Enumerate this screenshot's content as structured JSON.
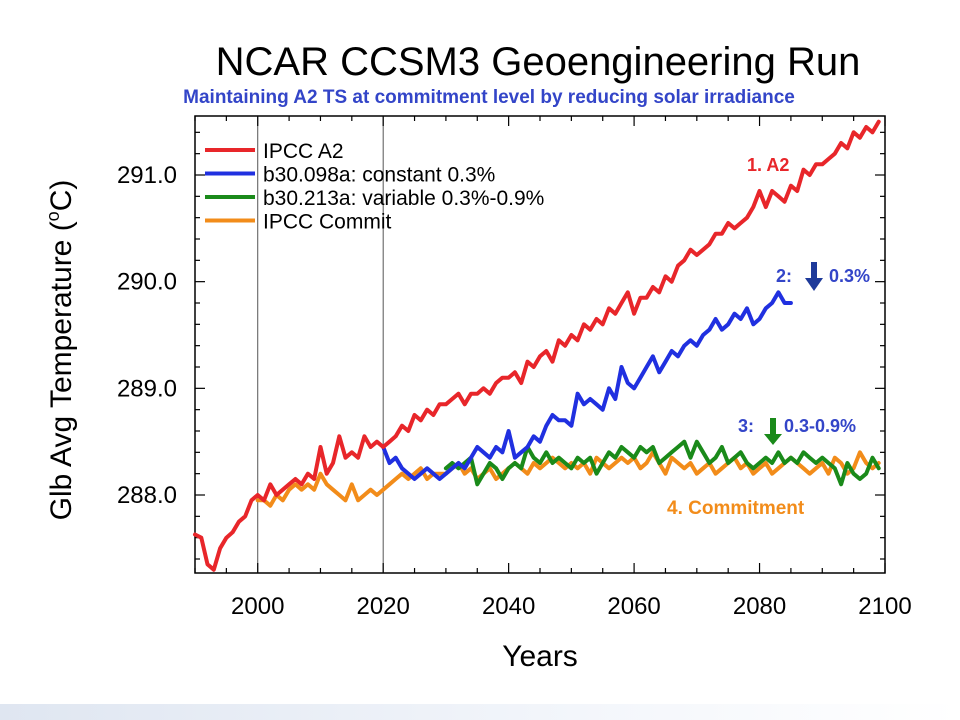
{
  "chart_data": {
    "type": "line",
    "title": "NCAR CCSM3 Geoengineering Run",
    "subtitle": "Maintaining A2 TS at commitment level by reducing solar irradiance",
    "xlabel": "Years",
    "ylabel": "Glb Avg Temperature (°C)",
    "ylabel_main": "Glb Avg Temperature (",
    "ylabel_unit_super": "o",
    "ylabel_unit": "C)",
    "xlim": [
      1990,
      2100
    ],
    "ylim": [
      287.3,
      291.5
    ],
    "x_ticks": [
      2000,
      2020,
      2040,
      2060,
      2080,
      2100
    ],
    "x_tick_labels": [
      "2000",
      "2020",
      "2040",
      "2060",
      "2080",
      "2100"
    ],
    "y_ticks": [
      288.0,
      289.0,
      290.0,
      291.0
    ],
    "y_tick_labels": [
      "288.0",
      "289.0",
      "290.0",
      "291.0"
    ],
    "vertical_lines": [
      2000,
      2020
    ],
    "grid": false,
    "legend_position": "top-left",
    "legend": [
      {
        "label": "IPCC A2",
        "color": "#e8262a"
      },
      {
        "label": "b30.098a: constant 0.3%",
        "color": "#2030e0"
      },
      {
        "label": "b30.213a: variable 0.3%-0.9%",
        "color": "#1a8a1a"
      },
      {
        "label": "IPCC Commit",
        "color": "#f28c1a"
      }
    ],
    "series": [
      {
        "name": "IPCC A2",
        "color": "#e8262a",
        "x": [
          1990,
          1991,
          1992,
          1993,
          1994,
          1995,
          1996,
          1997,
          1998,
          1999,
          2000,
          2001,
          2002,
          2003,
          2004,
          2005,
          2006,
          2007,
          2008,
          2009,
          2010,
          2011,
          2012,
          2013,
          2014,
          2015,
          2016,
          2017,
          2018,
          2019,
          2020,
          2021,
          2022,
          2023,
          2024,
          2025,
          2026,
          2027,
          2028,
          2029,
          2030,
          2031,
          2032,
          2033,
          2034,
          2035,
          2036,
          2037,
          2038,
          2039,
          2040,
          2041,
          2042,
          2043,
          2044,
          2045,
          2046,
          2047,
          2048,
          2049,
          2050,
          2051,
          2052,
          2053,
          2054,
          2055,
          2056,
          2057,
          2058,
          2059,
          2060,
          2061,
          2062,
          2063,
          2064,
          2065,
          2066,
          2067,
          2068,
          2069,
          2070,
          2071,
          2072,
          2073,
          2074,
          2075,
          2076,
          2077,
          2078,
          2079,
          2080,
          2081,
          2082,
          2083,
          2084,
          2085,
          2086,
          2087,
          2088,
          2089,
          2090,
          2091,
          2092,
          2093,
          2094,
          2095,
          2096,
          2097,
          2098,
          2099
        ],
        "y": [
          287.63,
          287.6,
          287.35,
          287.3,
          287.5,
          287.6,
          287.65,
          287.75,
          287.8,
          287.95,
          288.0,
          287.95,
          288.1,
          288.0,
          288.05,
          288.1,
          288.15,
          288.1,
          288.2,
          288.15,
          288.45,
          288.2,
          288.3,
          288.55,
          288.35,
          288.4,
          288.35,
          288.55,
          288.45,
          288.5,
          288.45,
          288.5,
          288.55,
          288.65,
          288.6,
          288.75,
          288.7,
          288.8,
          288.75,
          288.85,
          288.85,
          288.9,
          288.95,
          288.85,
          288.95,
          288.95,
          289.0,
          288.95,
          289.05,
          289.1,
          289.1,
          289.15,
          289.05,
          289.25,
          289.2,
          289.3,
          289.35,
          289.25,
          289.45,
          289.4,
          289.5,
          289.45,
          289.6,
          289.55,
          289.65,
          289.6,
          289.75,
          289.7,
          289.8,
          289.9,
          289.7,
          289.85,
          289.85,
          289.95,
          289.9,
          290.05,
          290.0,
          290.15,
          290.2,
          290.3,
          290.25,
          290.3,
          290.35,
          290.45,
          290.45,
          290.55,
          290.5,
          290.55,
          290.6,
          290.7,
          290.85,
          290.7,
          290.85,
          290.8,
          290.75,
          290.9,
          290.85,
          291.05,
          291.0,
          291.1,
          291.1,
          291.15,
          291.2,
          291.3,
          291.25,
          291.4,
          291.35,
          291.45,
          291.4,
          291.5
        ]
      },
      {
        "name": "b30.098a: constant 0.3%",
        "color": "#2030e0",
        "x": [
          2020,
          2021,
          2022,
          2023,
          2024,
          2025,
          2026,
          2027,
          2028,
          2029,
          2030,
          2031,
          2032,
          2033,
          2034,
          2035,
          2036,
          2037,
          2038,
          2039,
          2040,
          2041,
          2042,
          2043,
          2044,
          2045,
          2046,
          2047,
          2048,
          2049,
          2050,
          2051,
          2052,
          2053,
          2054,
          2055,
          2056,
          2057,
          2058,
          2059,
          2060,
          2061,
          2062,
          2063,
          2064,
          2065,
          2066,
          2067,
          2068,
          2069,
          2070,
          2071,
          2072,
          2073,
          2074,
          2075,
          2076,
          2077,
          2078,
          2079,
          2080,
          2081,
          2082,
          2083,
          2084,
          2085
        ],
        "y": [
          288.45,
          288.3,
          288.35,
          288.25,
          288.2,
          288.15,
          288.2,
          288.25,
          288.2,
          288.15,
          288.2,
          288.25,
          288.3,
          288.25,
          288.35,
          288.45,
          288.4,
          288.35,
          288.45,
          288.4,
          288.6,
          288.35,
          288.4,
          288.45,
          288.55,
          288.5,
          288.65,
          288.75,
          288.7,
          288.7,
          288.65,
          288.95,
          288.85,
          288.9,
          288.85,
          288.8,
          289.0,
          288.9,
          289.2,
          289.05,
          289.0,
          289.1,
          289.2,
          289.3,
          289.15,
          289.25,
          289.35,
          289.3,
          289.4,
          289.45,
          289.4,
          289.5,
          289.55,
          289.65,
          289.55,
          289.6,
          289.7,
          289.65,
          289.75,
          289.6,
          289.65,
          289.75,
          289.8,
          289.9,
          289.8,
          289.8
        ]
      },
      {
        "name": "b30.213a: variable 0.3%-0.9%",
        "color": "#1a8a1a",
        "x": [
          2030,
          2031,
          2032,
          2033,
          2034,
          2035,
          2036,
          2037,
          2038,
          2039,
          2040,
          2041,
          2042,
          2043,
          2044,
          2045,
          2046,
          2047,
          2048,
          2049,
          2050,
          2051,
          2052,
          2053,
          2054,
          2055,
          2056,
          2057,
          2058,
          2059,
          2060,
          2061,
          2062,
          2063,
          2064,
          2065,
          2066,
          2067,
          2068,
          2069,
          2070,
          2071,
          2072,
          2073,
          2074,
          2075,
          2076,
          2077,
          2078,
          2079,
          2080,
          2081,
          2082,
          2083,
          2084,
          2085,
          2086,
          2087,
          2088,
          2089,
          2090,
          2091,
          2092,
          2093,
          2094,
          2095,
          2096,
          2097,
          2098,
          2099
        ],
        "y": [
          288.25,
          288.3,
          288.25,
          288.3,
          288.35,
          288.1,
          288.2,
          288.3,
          288.25,
          288.15,
          288.25,
          288.3,
          288.25,
          288.45,
          288.35,
          288.3,
          288.4,
          288.3,
          288.35,
          288.3,
          288.25,
          288.35,
          288.3,
          288.35,
          288.2,
          288.3,
          288.4,
          288.35,
          288.45,
          288.4,
          288.35,
          288.45,
          288.4,
          288.45,
          288.3,
          288.35,
          288.4,
          288.45,
          288.5,
          288.35,
          288.5,
          288.4,
          288.3,
          288.35,
          288.45,
          288.3,
          288.35,
          288.4,
          288.3,
          288.25,
          288.3,
          288.35,
          288.3,
          288.4,
          288.3,
          288.35,
          288.3,
          288.4,
          288.35,
          288.3,
          288.35,
          288.3,
          288.25,
          288.1,
          288.3,
          288.2,
          288.15,
          288.2,
          288.35,
          288.25
        ]
      },
      {
        "name": "IPCC Commit",
        "color": "#f28c1a",
        "x": [
          2000,
          2001,
          2002,
          2003,
          2004,
          2005,
          2006,
          2007,
          2008,
          2009,
          2010,
          2011,
          2012,
          2013,
          2014,
          2015,
          2016,
          2017,
          2018,
          2019,
          2020,
          2021,
          2022,
          2023,
          2024,
          2025,
          2026,
          2027,
          2028,
          2029,
          2030,
          2031,
          2032,
          2033,
          2034,
          2035,
          2036,
          2037,
          2038,
          2039,
          2040,
          2041,
          2042,
          2043,
          2044,
          2045,
          2046,
          2047,
          2048,
          2049,
          2050,
          2051,
          2052,
          2053,
          2054,
          2055,
          2056,
          2057,
          2058,
          2059,
          2060,
          2061,
          2062,
          2063,
          2064,
          2065,
          2066,
          2067,
          2068,
          2069,
          2070,
          2071,
          2072,
          2073,
          2074,
          2075,
          2076,
          2077,
          2078,
          2079,
          2080,
          2081,
          2082,
          2083,
          2084,
          2085,
          2086,
          2087,
          2088,
          2089,
          2090,
          2091,
          2092,
          2093,
          2094,
          2095,
          2096,
          2097,
          2098,
          2099
        ],
        "y": [
          287.95,
          287.95,
          287.9,
          288.0,
          287.95,
          288.05,
          288.1,
          288.05,
          288.1,
          288.05,
          288.2,
          288.1,
          288.05,
          288.0,
          287.95,
          288.1,
          287.95,
          288.0,
          288.05,
          288.0,
          288.05,
          288.1,
          288.15,
          288.2,
          288.15,
          288.2,
          288.25,
          288.15,
          288.2,
          288.2,
          288.2,
          288.25,
          288.3,
          288.2,
          288.25,
          288.15,
          288.2,
          288.25,
          288.15,
          288.2,
          288.25,
          288.3,
          288.25,
          288.2,
          288.3,
          288.25,
          288.3,
          288.35,
          288.3,
          288.25,
          288.3,
          288.25,
          288.3,
          288.2,
          288.35,
          288.3,
          288.25,
          288.3,
          288.35,
          288.3,
          288.35,
          288.25,
          288.3,
          288.4,
          288.3,
          288.2,
          288.35,
          288.3,
          288.25,
          288.3,
          288.2,
          288.25,
          288.3,
          288.2,
          288.25,
          288.3,
          288.35,
          288.25,
          288.3,
          288.2,
          288.25,
          288.3,
          288.2,
          288.25,
          288.3,
          288.35,
          288.3,
          288.25,
          288.2,
          288.25,
          288.3,
          288.2,
          288.35,
          288.3,
          288.2,
          288.25,
          288.4,
          288.3,
          288.25,
          288.3
        ]
      }
    ],
    "annotations": [
      {
        "id": "a2",
        "text": "1. A2",
        "color": "#e8262a"
      },
      {
        "id": "const",
        "text": "2:",
        "text2": "0.3%",
        "color": "#2030e0",
        "arrow": "down",
        "arrow_color": "#1e3a9a"
      },
      {
        "id": "var",
        "text": "3:",
        "text2": "0.3-0.9%",
        "color": "#2030e0",
        "arrow": "down",
        "arrow_color": "#1a8a1a"
      },
      {
        "id": "commit",
        "text": "4. Commitment",
        "color": "#f28c1a"
      }
    ]
  }
}
